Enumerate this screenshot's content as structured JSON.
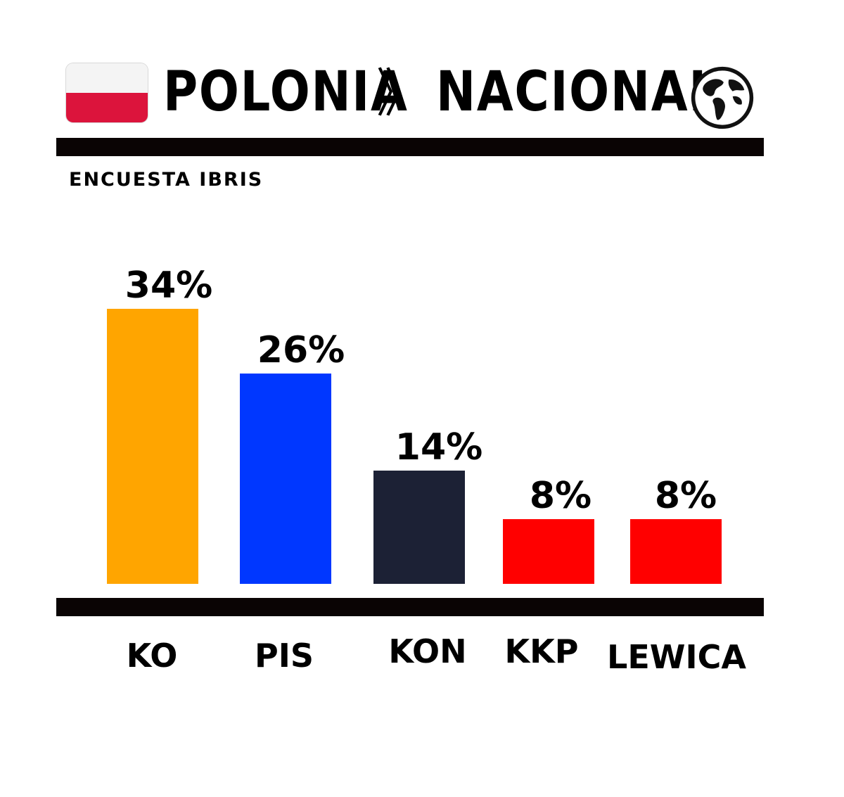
{
  "header": {
    "left_title": "POLONIA",
    "separator": "》",
    "right_title": "NACIONAL",
    "flag_icon": "poland-flag-icon",
    "globe_icon": "globe-icon",
    "flag_colors": [
      "#f4f4f4",
      "#dc143c"
    ]
  },
  "chart_data": {
    "type": "bar",
    "title": "ENCUESTA IBRIS",
    "categories": [
      "KO",
      "PIS",
      "KON",
      "KKP",
      "LEWICA"
    ],
    "values": [
      34,
      26,
      14,
      8,
      8
    ],
    "value_labels": [
      "34%",
      "26%",
      "14%",
      "8%",
      "8%"
    ],
    "colors": [
      "#ffa500",
      "#0037ff",
      "#1c2135",
      "#ff0000",
      "#ff0000"
    ],
    "ylim": [
      0,
      34
    ],
    "grid": false
  }
}
